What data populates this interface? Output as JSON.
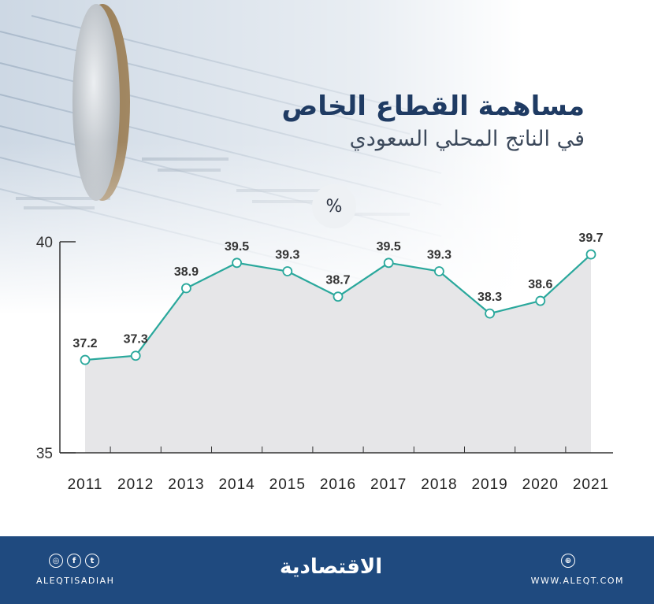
{
  "header": {
    "title_line1": "مساهمة القطاع الخاص",
    "title_line2": "في الناتج المحلي السعودي",
    "unit": "%"
  },
  "chart_data": {
    "type": "area",
    "x": [
      "2011",
      "2012",
      "2013",
      "2014",
      "2015",
      "2016",
      "2017",
      "2018",
      "2019",
      "2020",
      "2021"
    ],
    "series": [
      {
        "values": [
          37.2,
          37.3,
          38.9,
          39.5,
          39.3,
          38.7,
          39.5,
          39.3,
          38.3,
          38.6,
          39.7
        ]
      }
    ],
    "data_labels": [
      "37.2",
      "37.3",
      "38.9",
      "39.5",
      "39.3",
      "38.7",
      "39.5",
      "39.3",
      "38.3",
      "38.6",
      "39.7"
    ],
    "y_tick_labels": [
      "35",
      "40"
    ],
    "ylim": [
      35,
      40
    ],
    "colors": {
      "line": "#2aa89c",
      "fill": "#e6e6e8",
      "axis": "#333333"
    }
  },
  "footer": {
    "social_icons": [
      "instagram-icon",
      "facebook-icon",
      "twitter-icon"
    ],
    "handle": "ALEQTISADIAH",
    "logo": "الاقتصادية",
    "web_icon": "globe-icon",
    "website": "WWW.ALEQT.COM",
    "background": "#1f4a7f"
  }
}
